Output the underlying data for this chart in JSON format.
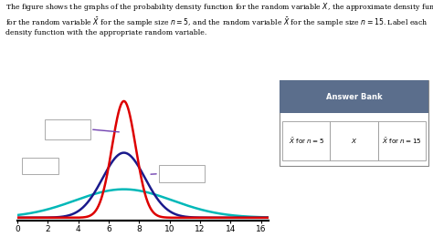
{
  "mean": 7,
  "curves": [
    {
      "label": "X",
      "sigma": 3.2,
      "color": "#00b8b8",
      "lw": 1.8
    },
    {
      "label": "X_bar_n5",
      "sigma": 1.4,
      "color": "#1a1a8c",
      "lw": 1.8
    },
    {
      "label": "X_bar_n15",
      "sigma": 0.78,
      "color": "#dd0000",
      "lw": 1.8
    }
  ],
  "xmin": 0,
  "xmax": 16,
  "xlabel_ticks": [
    0,
    2,
    4,
    6,
    8,
    10,
    12,
    14,
    16
  ],
  "answer_bank": {
    "title": "Answer Bank",
    "title_bg": "#5b6e8c",
    "items": [
      "$\\bar{X}$ for $n=5$",
      "$X$",
      "$\\bar{X}$ for $n=15$"
    ]
  },
  "text_lines": [
    "The figure shows the graphs of the probability density function for the random variable $X$, the approximate density functions",
    "for the random variable $\\bar{X}$ for the sample size $n=5$, and the random variable $\\bar{X}$ for the sample size $n=15$. Label each",
    "density function with the appropriate random variable."
  ],
  "line_color": "#7040b0"
}
